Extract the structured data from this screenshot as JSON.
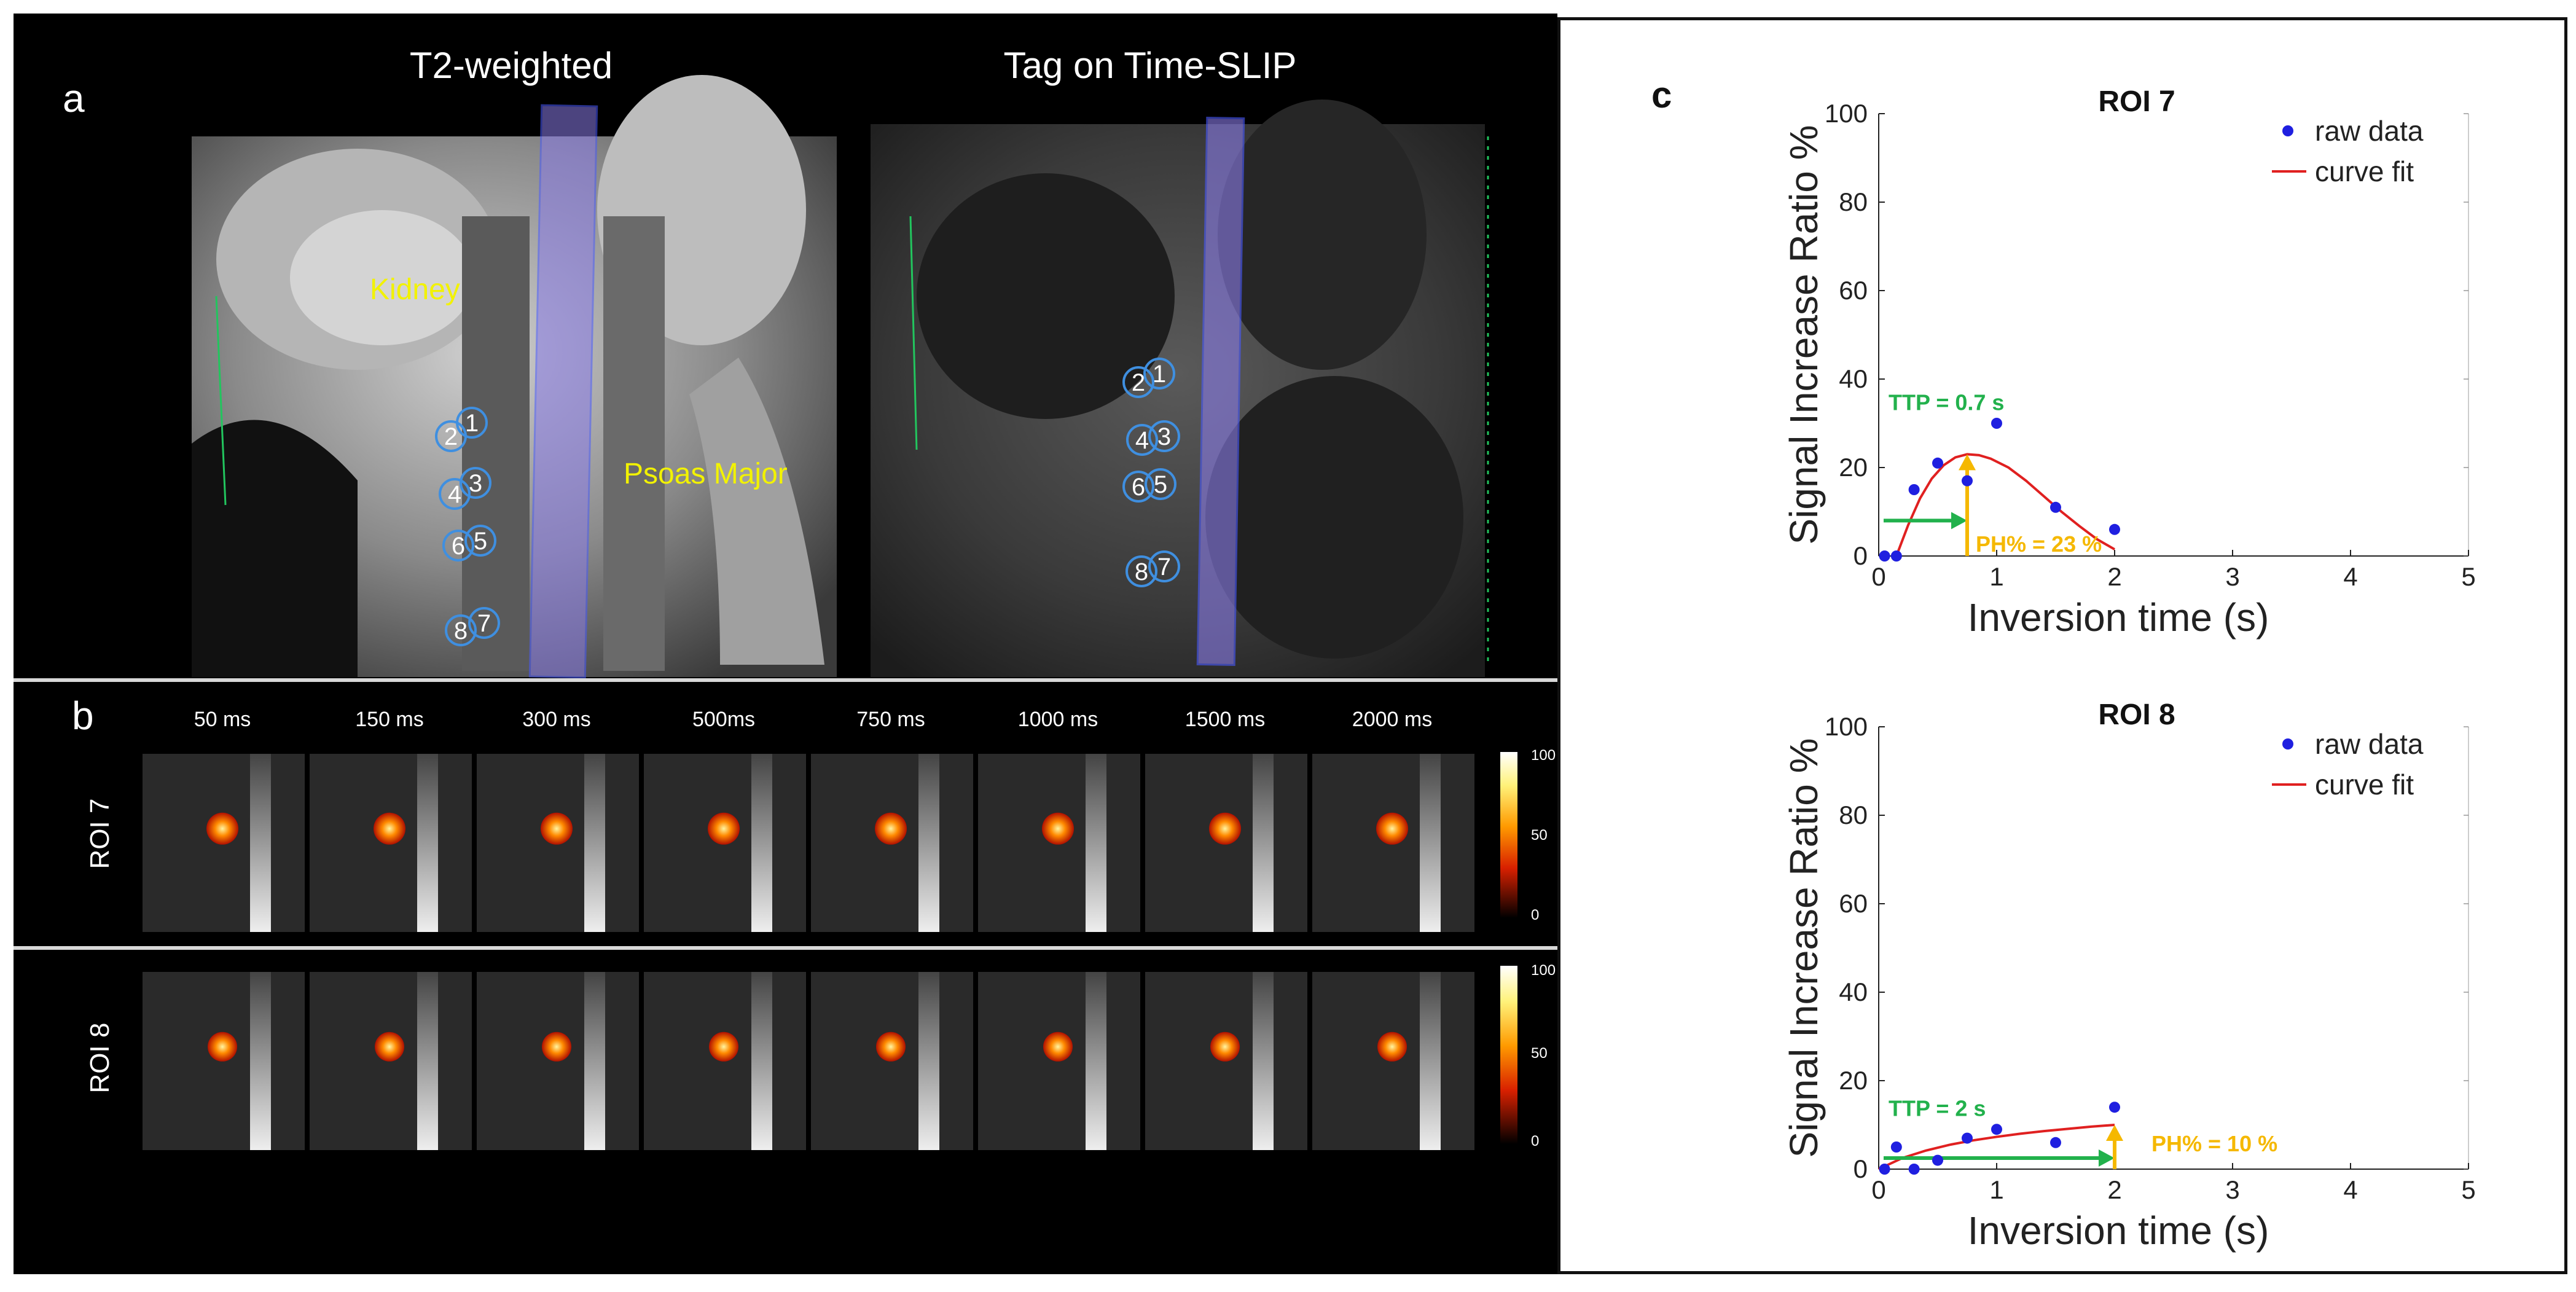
{
  "panel_a": {
    "letter": "a",
    "left_title": "T2-weighted",
    "right_title": "Tag on Time-SLIP",
    "kidney_label": "Kidney",
    "psoas_label": "Psoas Major",
    "label_color": "#f2f200",
    "roi_ring_color": "#3f8fe0",
    "tag_band_color": "#8a7ce8"
  },
  "panel_b": {
    "letter": "b",
    "times": [
      "50 ms",
      "150 ms",
      "300 ms",
      "500ms",
      "750 ms",
      "1000 ms",
      "1500 ms",
      "2000 ms"
    ],
    "rows": [
      "ROI 7",
      "ROI 8"
    ],
    "colorbar_ticks": [
      "100",
      "50",
      "0"
    ]
  },
  "panel_c": {
    "letter": "c",
    "legend_raw": "raw data",
    "legend_fit": "curve fit"
  },
  "chart_data": [
    {
      "type": "scatter",
      "title": "ROI 7",
      "xlabel": "Inversion time (s)",
      "ylabel": "Signal Increase Ratio %",
      "xlim": [
        0,
        5
      ],
      "ylim": [
        0,
        100
      ],
      "xticks": [
        0,
        1,
        2,
        3,
        4,
        5
      ],
      "yticks": [
        0,
        20,
        40,
        60,
        80,
        100
      ],
      "series": [
        {
          "name": "raw data",
          "color": "#1f1fe0",
          "x": [
            0.05,
            0.15,
            0.3,
            0.5,
            0.75,
            1.0,
            1.5,
            2.0
          ],
          "y": [
            0,
            0,
            15,
            21,
            17,
            30,
            11,
            6
          ]
        },
        {
          "name": "curve fit",
          "color": "#e02020",
          "x": [
            0.15,
            0.25,
            0.35,
            0.45,
            0.55,
            0.65,
            0.75,
            0.85,
            0.95,
            1.1,
            1.25,
            1.4,
            1.55,
            1.7,
            1.85,
            2.0
          ],
          "y": [
            0,
            7,
            13,
            17.5,
            20.5,
            22.3,
            23,
            22.8,
            22,
            20,
            17,
            13.5,
            10,
            6.8,
            3.8,
            1.5
          ]
        }
      ],
      "annotations": {
        "ttp": "TTP = 0.7 s",
        "ph": "PH% = 23 %",
        "ttp_x": 0.75,
        "ph_y": 23,
        "ttp_color": "#22b14c",
        "ph_color": "#f5b800"
      },
      "legend": "top-right",
      "grid": false
    },
    {
      "type": "scatter",
      "title": "ROI 8",
      "xlabel": "Inversion time (s)",
      "ylabel": "Signal Increase Ratio %",
      "xlim": [
        0,
        5
      ],
      "ylim": [
        0,
        100
      ],
      "xticks": [
        0,
        1,
        2,
        3,
        4,
        5
      ],
      "yticks": [
        0,
        20,
        40,
        60,
        80,
        100
      ],
      "series": [
        {
          "name": "raw data",
          "color": "#1f1fe0",
          "x": [
            0.05,
            0.15,
            0.3,
            0.5,
            0.75,
            1.0,
            1.5,
            2.0
          ],
          "y": [
            0,
            5,
            0,
            2,
            7,
            9,
            6,
            14
          ]
        },
        {
          "name": "curve fit",
          "color": "#e02020",
          "x": [
            0.0,
            0.2,
            0.4,
            0.6,
            0.8,
            1.0,
            1.2,
            1.4,
            1.6,
            1.8,
            2.0
          ],
          "y": [
            0,
            2.5,
            4.2,
            5.5,
            6.5,
            7.3,
            8.0,
            8.6,
            9.1,
            9.6,
            10
          ]
        }
      ],
      "annotations": {
        "ttp": "TTP = 2 s",
        "ph": "PH% = 10 %",
        "ttp_x": 2,
        "ph_y": 10,
        "ttp_color": "#22b14c",
        "ph_color": "#f5b800"
      },
      "legend": "top-right",
      "grid": false
    }
  ]
}
